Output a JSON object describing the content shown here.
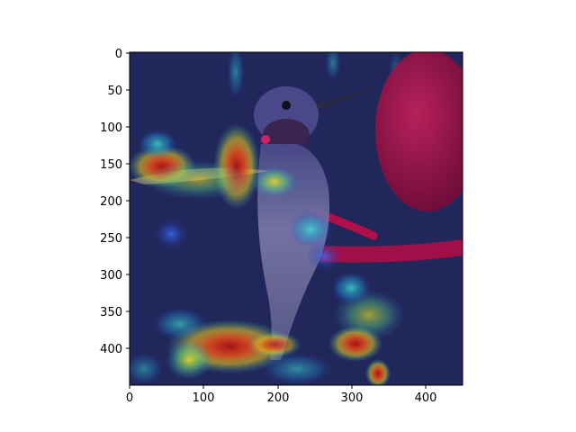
{
  "figure": {
    "x_ticks": [
      "0",
      "100",
      "200",
      "300",
      "400"
    ],
    "y_ticks": [
      "0",
      "50",
      "100",
      "150",
      "200",
      "250",
      "300",
      "350",
      "400"
    ]
  },
  "image": {
    "subject": "hummingbird-at-feeder",
    "overlay": "jet-colormap-attention-heatmap",
    "colors": {
      "background_dark": "#1f2550",
      "bird_body": "#6b6aa0",
      "bird_throat": "#3a2450",
      "feeder_red": "#b0104a",
      "heat_red": "#c81a10",
      "heat_yellow": "#f2e020",
      "heat_cyan": "#22d0c8",
      "heat_blue": "#2a40c8"
    }
  }
}
